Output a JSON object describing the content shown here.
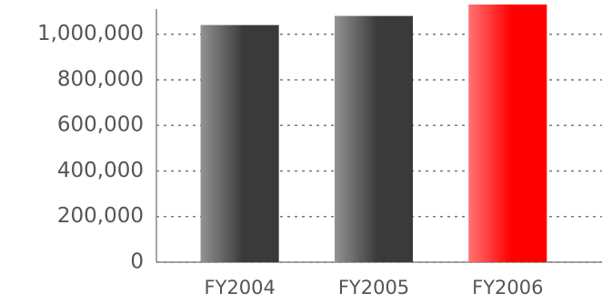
{
  "chart_data": {
    "type": "bar",
    "categories": [
      "FY2004",
      "FY2005",
      "FY2006"
    ],
    "values": [
      1040000,
      1080000,
      1130000
    ],
    "colors": [
      "#3a3a3a",
      "#3a3a3a",
      "#ff0000"
    ],
    "ylim": [
      0,
      1150000
    ],
    "yticks": [
      0,
      {
        "value": 200000,
        "label": "200,000"
      },
      {
        "value": 400000,
        "label": "400,000"
      },
      {
        "value": 600000,
        "label": "600,000"
      },
      {
        "value": 800000,
        "label": "800,000"
      },
      {
        "value": 1000000,
        "label": "1,000,000"
      }
    ],
    "grid": true
  }
}
